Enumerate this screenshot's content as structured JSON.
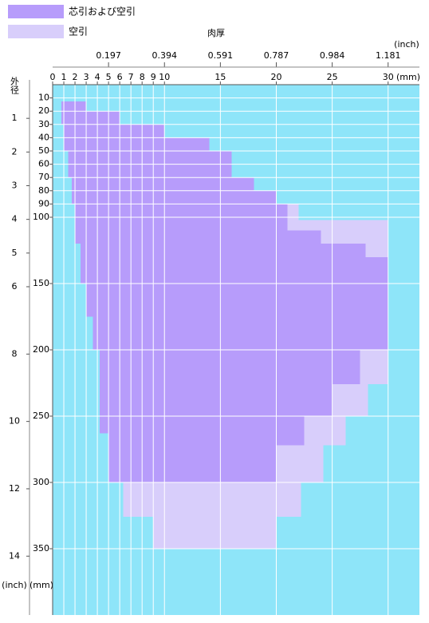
{
  "chart_data": {
    "type": "range-area",
    "x_label": "肉厚",
    "x_unit": "(mm)",
    "x2_unit": "(inch)",
    "y_label": "外径",
    "y_unit": "(mm)",
    "y2_unit": "(inch)",
    "xlim": [
      0,
      32.8
    ],
    "ylim": [
      400,
      0
    ],
    "xticks": [
      0,
      1,
      2,
      3,
      4,
      5,
      6,
      7,
      8,
      9,
      10,
      15,
      20,
      25,
      30
    ],
    "x2ticks": [
      {
        "value": 5,
        "label": "0.197"
      },
      {
        "value": 10,
        "label": "0.394"
      },
      {
        "value": 15,
        "label": "0.591"
      },
      {
        "value": 20,
        "label": "0.787"
      },
      {
        "value": 25,
        "label": "0.984"
      },
      {
        "value": 30,
        "label": "1.181"
      }
    ],
    "yticks": [
      10,
      20,
      30,
      40,
      50,
      60,
      70,
      80,
      90,
      100,
      150,
      200,
      250,
      300,
      350
    ],
    "y2ticks": [
      {
        "value": 25.4,
        "label": "1"
      },
      {
        "value": 50.8,
        "label": "2"
      },
      {
        "value": 76.2,
        "label": "3"
      },
      {
        "value": 101.6,
        "label": "4"
      },
      {
        "value": 127,
        "label": "5"
      },
      {
        "value": 152.4,
        "label": "6"
      },
      {
        "value": 203.2,
        "label": "8"
      },
      {
        "value": 254,
        "label": "10"
      },
      {
        "value": 304.8,
        "label": "12"
      },
      {
        "value": 355.6,
        "label": "14"
      }
    ],
    "grid": true,
    "background": "#8ee5f9",
    "series": [
      {
        "name": "芯引および空引",
        "color": "#b79cfb",
        "rects": [
          [
            12.7,
            20,
            0.8,
            3
          ],
          [
            20,
            30,
            0.8,
            6
          ],
          [
            30,
            40,
            1.0,
            10
          ],
          [
            40,
            50,
            1.0,
            14
          ],
          [
            50,
            70,
            1.4,
            16
          ],
          [
            70,
            80,
            1.7,
            18
          ],
          [
            80,
            90,
            1.7,
            20
          ],
          [
            90,
            110,
            2.0,
            21
          ],
          [
            110,
            120,
            2.0,
            24
          ],
          [
            120,
            130,
            2.5,
            28
          ],
          [
            130,
            150,
            2.5,
            30
          ],
          [
            150,
            175,
            3.0,
            30
          ],
          [
            175,
            200,
            3.6,
            30
          ],
          [
            200,
            226,
            4.2,
            27.5
          ],
          [
            226,
            250,
            4.2,
            25
          ],
          [
            250,
            263,
            4.2,
            22.5
          ],
          [
            263,
            272,
            5.0,
            22.5
          ],
          [
            272,
            300,
            5.0,
            20
          ]
        ]
      },
      {
        "name": "空引",
        "color": "#d8cefb",
        "rects": [
          [
            90,
            102,
            21,
            22
          ],
          [
            102,
            110,
            21,
            30
          ],
          [
            110,
            120,
            24,
            30
          ],
          [
            120,
            130,
            28,
            30
          ],
          [
            200,
            226,
            27.5,
            30
          ],
          [
            226,
            250,
            25,
            28.2
          ],
          [
            250,
            272,
            22.5,
            26.2
          ],
          [
            272,
            300,
            20,
            24.2
          ],
          [
            300,
            326,
            6.3,
            22.2
          ],
          [
            326,
            350,
            9,
            20
          ]
        ]
      }
    ]
  }
}
